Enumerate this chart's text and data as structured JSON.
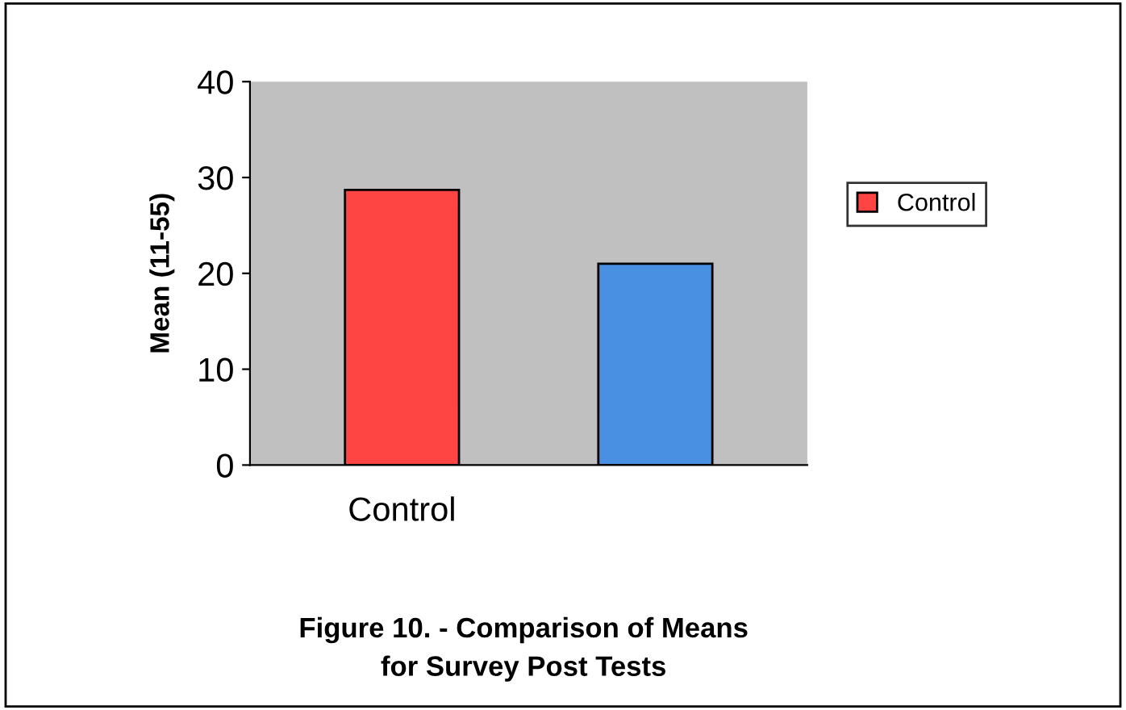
{
  "chart_data": {
    "type": "bar",
    "title": "Figure 10. - Comparison of Means\nfor Survey Post Tests",
    "ylabel": "Mean (11-55)",
    "categories": [
      "Control",
      null
    ],
    "series": [
      {
        "name": "Control",
        "color": "#ff4444",
        "values": [
          28.7,
          null
        ]
      },
      {
        "color": "#4a90e2",
        "values": [
          null,
          21
        ]
      }
    ],
    "ylim": [
      0,
      40
    ],
    "yticks": [
      0,
      10,
      20,
      30,
      40
    ],
    "grid": false,
    "legend": "right"
  }
}
